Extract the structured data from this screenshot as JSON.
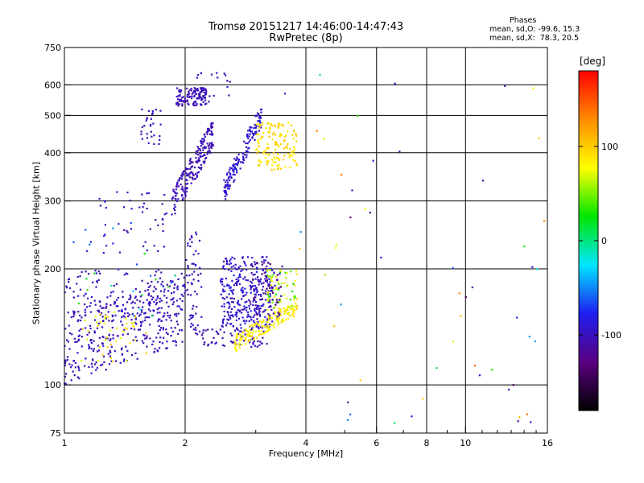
{
  "title": {
    "line1": "Tromsø 20151217 14:46:00-14:47:43",
    "line2": "RwPretec (8p)"
  },
  "phase_stats": {
    "heading": "Phases",
    "o_line": "mean, sd,O: -99.6, 15.3",
    "x_line": "mean, sd,X:  78.3, 20.5"
  },
  "colorbar": {
    "unit_label": "[deg]",
    "min": -180,
    "max": 180,
    "tick_labels": [
      "100",
      "0",
      "-100"
    ],
    "tick_values": [
      100,
      0,
      -100
    ],
    "colormap": [
      "#000000",
      "#5a0080",
      "#1e1ef0",
      "#00e6ff",
      "#00e600",
      "#ffff00",
      "#ff8c00",
      "#ff0000"
    ]
  },
  "chart_data": {
    "type": "scatter",
    "title": "Tromsø 20151217 14:46:00-14:47:43",
    "subtitle": "RwPretec (8p)",
    "xlabel": "Frequency [MHz]",
    "ylabel": "Stationary phase Virtual Height [km]",
    "xscale": "log",
    "yscale": "log",
    "xlim": [
      1,
      16
    ],
    "ylim": [
      75,
      750
    ],
    "xticks": [
      1,
      2,
      4,
      6,
      8,
      10,
      16
    ],
    "xtick_labels": [
      "1",
      "2",
      "4",
      "6",
      "8",
      "10",
      "16"
    ],
    "xgrid": [
      2,
      4,
      6,
      8,
      10
    ],
    "yticks": [
      75,
      100,
      200,
      300,
      400,
      500,
      600,
      750
    ],
    "ytick_labels": [
      "75",
      "100",
      "200",
      "300",
      "400",
      "500",
      "600",
      "750"
    ],
    "ygrid": [
      100,
      200,
      300,
      400,
      500,
      600
    ],
    "grid": true,
    "color_variable": "phase [deg]",
    "point_groups": [
      {
        "x": [
          1.0,
          2.0
        ],
        "y": [
          125,
          160
        ],
        "phase": [
          -105,
          -95
        ],
        "n": 360,
        "xmode": "log",
        "shape": "diag",
        "slope": 1.6,
        "ysd": 0.22
      },
      {
        "x": [
          1.0,
          1.9
        ],
        "y": [
          150,
          200
        ],
        "phase": [
          -110,
          -90
        ],
        "n": 90,
        "xmode": "log",
        "shape": "uniform"
      },
      {
        "x": [
          1.1,
          1.6
        ],
        "y": [
          115,
          155
        ],
        "phase": [
          60,
          110
        ],
        "n": 45,
        "xmode": "log",
        "shape": "uniform"
      },
      {
        "x": [
          1.05,
          1.9
        ],
        "y": [
          150,
          270
        ],
        "phase": [
          -120,
          40
        ],
        "n": 35,
        "xmode": "log",
        "shape": "uniform"
      },
      {
        "x": [
          1.2,
          1.8
        ],
        "y": [
          220,
          320
        ],
        "phase": [
          -110,
          -80
        ],
        "n": 45,
        "xmode": "log",
        "shape": "uniform"
      },
      {
        "x": [
          1.55,
          1.75
        ],
        "y": [
          420,
          520
        ],
        "phase": [
          -110,
          -95
        ],
        "n": 30,
        "xmode": "log",
        "shape": "uniform"
      },
      {
        "x": [
          1.9,
          2.3
        ],
        "y": [
          530,
          590
        ],
        "phase": [
          -110,
          -95
        ],
        "n": 120,
        "xmode": "log",
        "shape": "uniform"
      },
      {
        "x": [
          1.85,
          2.35
        ],
        "y": [
          290,
          450
        ],
        "phase": [
          -110,
          -95
        ],
        "n": 200,
        "xmode": "log",
        "shape": "diag",
        "slope": 3.2,
        "ysd": 0.09
      },
      {
        "x": [
          2.0,
          2.2
        ],
        "y": [
          135,
          250
        ],
        "phase": [
          -110,
          -90
        ],
        "n": 60,
        "xmode": "log",
        "shape": "uniform"
      },
      {
        "x": [
          2.2,
          3.2
        ],
        "y": [
          125,
          140
        ],
        "phase": [
          -110,
          -95
        ],
        "n": 70,
        "xmode": "log",
        "shape": "uniform"
      },
      {
        "x": [
          2.45,
          3.3
        ],
        "y": [
          140,
          215
        ],
        "phase": [
          -105,
          -80
        ],
        "n": 320,
        "xmode": "log",
        "shape": "uniform"
      },
      {
        "x": [
          2.65,
          3.8
        ],
        "y": [
          128,
          160
        ],
        "phase": [
          70,
          100
        ],
        "n": 170,
        "xmode": "log",
        "shape": "diag",
        "slope": 0.55,
        "ysd": 0.05
      },
      {
        "x": [
          3.2,
          3.8
        ],
        "y": [
          155,
          200
        ],
        "phase": [
          20,
          100
        ],
        "n": 70,
        "xmode": "log",
        "shape": "uniform"
      },
      {
        "x": [
          2.9,
          3.5
        ],
        "y": [
          150,
          210
        ],
        "phase": [
          -140,
          -100
        ],
        "n": 70,
        "xmode": "log",
        "shape": "uniform"
      },
      {
        "x": [
          2.5,
          3.1
        ],
        "y": [
          320,
          500
        ],
        "phase": [
          -105,
          -80
        ],
        "n": 150,
        "xmode": "log",
        "shape": "diag",
        "slope": 1.8,
        "ysd": 0.07
      },
      {
        "x": [
          3.0,
          3.8
        ],
        "y": [
          360,
          480
        ],
        "phase": [
          80,
          105
        ],
        "n": 140,
        "xmode": "log",
        "shape": "uniform"
      },
      {
        "x": [
          2.1,
          2.6
        ],
        "y": [
          560,
          650
        ],
        "phase": [
          -110,
          -80
        ],
        "n": 18,
        "xmode": "log",
        "shape": "uniform"
      },
      {
        "x": [
          3.5,
          16
        ],
        "y": [
          78,
          650
        ],
        "phase": [
          -150,
          150
        ],
        "n": 55,
        "xmode": "log",
        "shape": "uniform"
      }
    ]
  }
}
